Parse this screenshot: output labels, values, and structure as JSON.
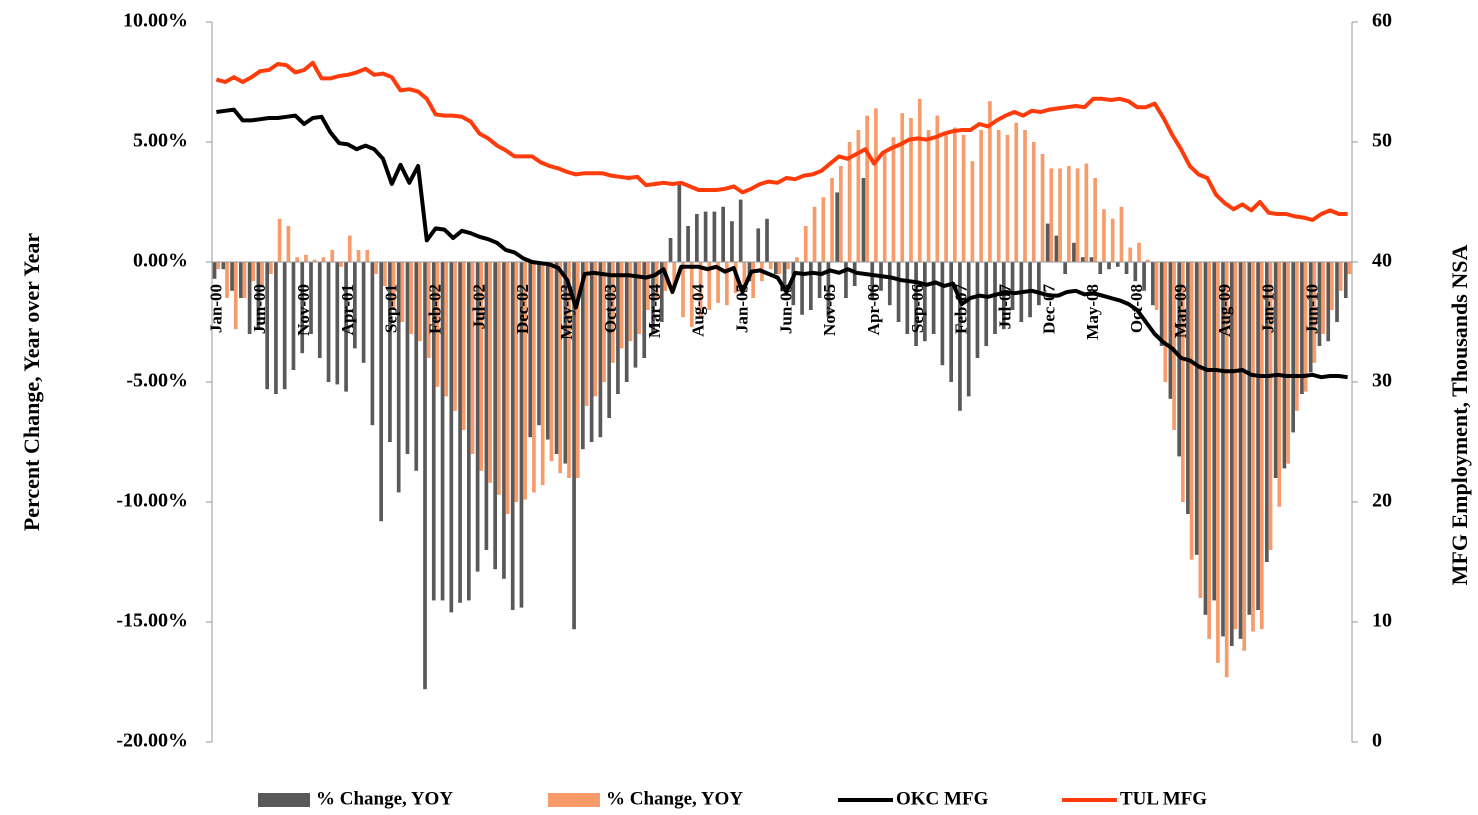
{
  "chart_data": {
    "type": "bar-line",
    "ylabel": "Percent Change, Year over Year",
    "y2label": "MFG Employment, Thousands NSA",
    "categories": [
      "Jan-00",
      null,
      null,
      null,
      null,
      "Jun-00",
      null,
      null,
      null,
      null,
      "Nov-00",
      null,
      null,
      null,
      null,
      "Apr-01",
      null,
      null,
      null,
      null,
      "Sep-01",
      null,
      null,
      null,
      null,
      "Feb-02",
      null,
      null,
      null,
      null,
      "Jul-02",
      null,
      null,
      null,
      null,
      "Dec-02",
      null,
      null,
      null,
      null,
      "May-03",
      null,
      null,
      null,
      null,
      "Oct-03",
      null,
      null,
      null,
      null,
      "Mar-04",
      null,
      null,
      null,
      null,
      "Aug-04",
      null,
      null,
      null,
      null,
      "Jan-05",
      null,
      null,
      null,
      null,
      "Jun-05",
      null,
      null,
      null,
      null,
      "Nov-05",
      null,
      null,
      null,
      null,
      "Apr-06",
      null,
      null,
      null,
      null,
      "Sep-06",
      null,
      null,
      null,
      null,
      "Feb-07",
      null,
      null,
      null,
      null,
      "Jul-07",
      null,
      null,
      null,
      null,
      "Dec-07",
      null,
      null,
      null,
      null,
      "May-08",
      null,
      null,
      null,
      null,
      "Oct-08",
      null,
      null,
      null,
      null,
      "Mar-09",
      null,
      null,
      null,
      null,
      "Aug-09",
      null,
      null,
      null,
      null,
      "Jan-10",
      null,
      null,
      null,
      null,
      "Jun-10",
      null,
      null,
      null,
      null
    ],
    "ylim": [
      -20,
      10
    ],
    "yticks": [
      {
        "value": -20,
        "label": "-20.00%"
      },
      {
        "value": -15,
        "label": "-15.00%"
      },
      {
        "value": -10,
        "label": "-10.00%"
      },
      {
        "value": -5,
        "label": "-5.00%"
      },
      {
        "value": 0,
        "label": "0.00%"
      },
      {
        "value": 5,
        "label": "5.00%"
      },
      {
        "value": 10,
        "label": "10.00%"
      }
    ],
    "y2lim": [
      0,
      60
    ],
    "y2ticks": [
      0,
      10,
      20,
      30,
      40,
      50,
      60
    ],
    "legend": "bottom",
    "series": [
      {
        "name": "% Change, YOY",
        "type": "bar",
        "color": "#595959",
        "values": [
          -0.7,
          -0.3,
          -1.2,
          -1.5,
          -3.0,
          -2.8,
          -5.3,
          -5.5,
          -5.3,
          -4.5,
          -3.8,
          -3.0,
          -4.0,
          -5.0,
          -5.1,
          -5.4,
          -3.6,
          -4.2,
          -6.8,
          -10.8,
          -7.5,
          -9.6,
          -8.0,
          -8.7,
          -17.8,
          -14.1,
          -14.1,
          -14.6,
          -14.2,
          -14.1,
          -12.9,
          -12.0,
          -12.8,
          -13.2,
          -14.5,
          -14.4,
          -7.3,
          -6.8,
          -7.4,
          -8.0,
          -8.4,
          -15.3,
          -7.8,
          -7.5,
          -7.3,
          -6.5,
          -5.5,
          -5.0,
          -4.4,
          -4.0,
          -3.0,
          -2.5,
          1.0,
          3.3,
          1.5,
          2.0,
          2.1,
          2.1,
          2.3,
          1.7,
          2.6,
          -0.8,
          1.4,
          1.8,
          -0.5,
          -1.0,
          -1.8,
          -2.2,
          -2.0,
          -1.5,
          -2.3,
          2.9,
          -1.5,
          -1.0,
          3.5,
          -1.5,
          -1.2,
          -1.8,
          -2.5,
          -3.0,
          -3.5,
          -3.3,
          -3.0,
          -4.3,
          -5.0,
          -6.2,
          -5.6,
          -4.0,
          -3.5,
          -3.0,
          -2.8,
          -2.0,
          -2.5,
          -2.3,
          -1.8,
          1.6,
          1.1,
          -0.5,
          0.8,
          0.2,
          0.2,
          -0.5,
          -0.3,
          -0.2,
          -0.5,
          -0.8,
          -1.2,
          -1.8,
          -3.5,
          -5.7,
          -8.1,
          -10.5,
          -12.2,
          -14.7,
          -14.1,
          -15.6,
          -16.0,
          -15.7,
          -14.7,
          -14.5,
          -12.5,
          -9.0,
          -8.6,
          -7.1,
          -5.5,
          -4.6,
          -3.5,
          -3.3,
          -2.5,
          -1.5
        ]
      },
      {
        "name": "% Change, YOY",
        "type": "bar",
        "color": "#f79b6a",
        "values": [
          -0.3,
          -1.5,
          -2.8,
          -1.5,
          -0.8,
          -1.0,
          -0.5,
          1.8,
          1.5,
          0.2,
          0.3,
          0.1,
          0.2,
          0.5,
          -0.2,
          1.1,
          0.5,
          0.5,
          -0.5,
          -1.0,
          -2.0,
          -2.5,
          -3.0,
          -3.3,
          -4.0,
          -5.2,
          -5.6,
          -6.2,
          -7.0,
          -8.0,
          -8.7,
          -9.2,
          -9.7,
          -10.5,
          -10.0,
          -9.9,
          -9.6,
          -9.3,
          -8.3,
          -8.8,
          -9.0,
          -9.0,
          -6.0,
          -5.6,
          -5.0,
          -4.2,
          -3.6,
          -3.3,
          -3.0,
          -2.0,
          -1.5,
          -1.2,
          -1.0,
          -2.3,
          -2.7,
          -2.3,
          -2.0,
          -1.7,
          -1.8,
          -1.3,
          -1.0,
          -1.5,
          -0.8,
          -0.3,
          -0.5,
          -0.3,
          0.2,
          1.5,
          2.3,
          2.7,
          3.5,
          4.0,
          5.0,
          5.5,
          6.1,
          6.4,
          4.5,
          5.2,
          6.2,
          6.0,
          6.8,
          5.5,
          6.1,
          5.3,
          5.6,
          5.3,
          4.2,
          5.5,
          6.7,
          5.5,
          5.3,
          5.8,
          5.5,
          5.0,
          4.5,
          3.9,
          3.9,
          4.0,
          3.9,
          4.1,
          3.5,
          2.2,
          1.8,
          2.3,
          0.6,
          0.8,
          0.1,
          -2.0,
          -5.0,
          -7.0,
          -10.0,
          -12.4,
          -14.0,
          -15.7,
          -16.7,
          -17.3,
          -15.3,
          -16.2,
          -15.4,
          -15.3,
          -12.0,
          -10.2,
          -8.4,
          -6.2,
          -5.4,
          -4.2,
          -3.0,
          -2.0,
          -1.2,
          -0.5
        ]
      },
      {
        "name": "OKC MFG",
        "type": "line",
        "axis": "y2",
        "color": "#000000",
        "values": [
          52.5,
          52.6,
          52.7,
          51.8,
          51.8,
          51.9,
          52.0,
          52.0,
          52.1,
          52.2,
          51.5,
          52.0,
          52.1,
          50.8,
          49.9,
          49.8,
          49.4,
          49.7,
          49.4,
          48.6,
          46.5,
          48.1,
          46.6,
          48.0,
          41.8,
          42.8,
          42.7,
          42.0,
          42.6,
          42.4,
          42.1,
          41.9,
          41.6,
          41.0,
          40.8,
          40.3,
          40.0,
          39.9,
          39.8,
          39.5,
          38.5,
          36.2,
          39.0,
          39.1,
          39.0,
          38.9,
          38.9,
          38.9,
          38.8,
          38.7,
          38.9,
          39.4,
          37.5,
          39.6,
          39.6,
          39.6,
          39.4,
          39.6,
          39.2,
          39.5,
          37.5,
          39.2,
          39.3,
          39.0,
          38.7,
          37.5,
          39.1,
          39.0,
          39.1,
          39.0,
          39.3,
          39.1,
          39.4,
          39.1,
          39.0,
          38.9,
          38.8,
          38.7,
          38.5,
          38.4,
          38.3,
          38.1,
          38.3,
          38.0,
          38.2,
          36.5,
          37.0,
          37.2,
          37.1,
          37.3,
          37.5,
          37.4,
          37.5,
          37.6,
          37.4,
          37.2,
          37.2,
          37.5,
          37.6,
          37.3,
          37.4,
          37.2,
          37.0,
          36.8,
          36.5,
          36.0,
          35.0,
          34.0,
          33.3,
          32.8,
          32.0,
          31.8,
          31.3,
          31.0,
          31.0,
          30.9,
          30.9,
          31.0,
          30.6,
          30.5,
          30.5,
          30.6,
          30.5,
          30.5,
          30.5,
          30.6,
          30.4,
          30.5,
          30.5,
          30.4
        ]
      },
      {
        "name": "TUL MFG",
        "type": "line",
        "axis": "y2",
        "color": "#fe3b0a",
        "values": [
          55.2,
          55.0,
          55.4,
          55.0,
          55.4,
          55.9,
          56.0,
          56.5,
          56.4,
          55.8,
          56.0,
          56.6,
          55.3,
          55.3,
          55.5,
          55.6,
          55.8,
          56.1,
          55.6,
          55.7,
          55.4,
          54.3,
          54.4,
          54.2,
          53.6,
          52.3,
          52.2,
          52.2,
          52.1,
          51.7,
          50.7,
          50.3,
          49.7,
          49.3,
          48.8,
          48.8,
          48.8,
          48.3,
          48.0,
          47.8,
          47.5,
          47.3,
          47.4,
          47.4,
          47.4,
          47.2,
          47.1,
          47.0,
          47.1,
          46.4,
          46.5,
          46.6,
          46.5,
          46.6,
          46.3,
          46.0,
          46.0,
          46.0,
          46.1,
          46.3,
          45.8,
          46.1,
          46.5,
          46.7,
          46.6,
          47.0,
          46.9,
          47.2,
          47.3,
          47.6,
          48.2,
          48.8,
          48.6,
          49.0,
          49.4,
          48.2,
          49.1,
          49.5,
          49.8,
          50.2,
          50.3,
          50.2,
          50.4,
          50.7,
          50.9,
          51.0,
          51.0,
          51.5,
          51.3,
          51.8,
          52.2,
          52.5,
          52.2,
          52.6,
          52.5,
          52.7,
          52.8,
          52.9,
          53.0,
          52.9,
          53.6,
          53.6,
          53.5,
          53.6,
          53.4,
          52.9,
          52.9,
          53.2,
          52.0,
          50.6,
          49.4,
          48.0,
          47.3,
          47.0,
          45.6,
          44.9,
          44.4,
          44.8,
          44.3,
          45.0,
          44.1,
          44.0,
          44.0,
          43.8,
          43.7,
          43.5,
          44.0,
          44.3,
          44.0,
          44.0
        ]
      }
    ]
  }
}
